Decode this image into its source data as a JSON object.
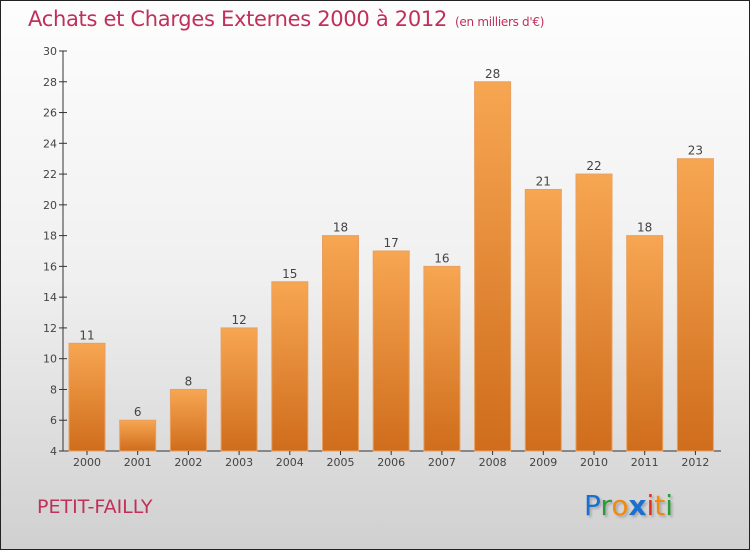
{
  "title": "Achats et Charges Externes 2000 à 2012",
  "unit": "(en milliers d'€)",
  "city": "PETIT-FAILLY",
  "logo": "Proxiti",
  "colors": {
    "title": "#c0305a",
    "bar_top": "#f7a652",
    "bar_bottom": "#cf6d1c"
  },
  "chart_data": {
    "type": "bar",
    "title": "Achats et Charges Externes 2000 à 2012",
    "xlabel": "",
    "ylabel": "(en milliers d'€)",
    "categories": [
      "2000",
      "2001",
      "2002",
      "2003",
      "2004",
      "2005",
      "2006",
      "2007",
      "2008",
      "2009",
      "2010",
      "2011",
      "2012"
    ],
    "values": [
      11,
      6,
      8,
      12,
      15,
      18,
      17,
      16,
      28,
      21,
      22,
      18,
      23
    ],
    "ylim": [
      4,
      30
    ],
    "yticks": [
      4,
      6,
      8,
      10,
      12,
      14,
      16,
      18,
      20,
      22,
      24,
      26,
      28,
      30
    ],
    "grid": false
  }
}
